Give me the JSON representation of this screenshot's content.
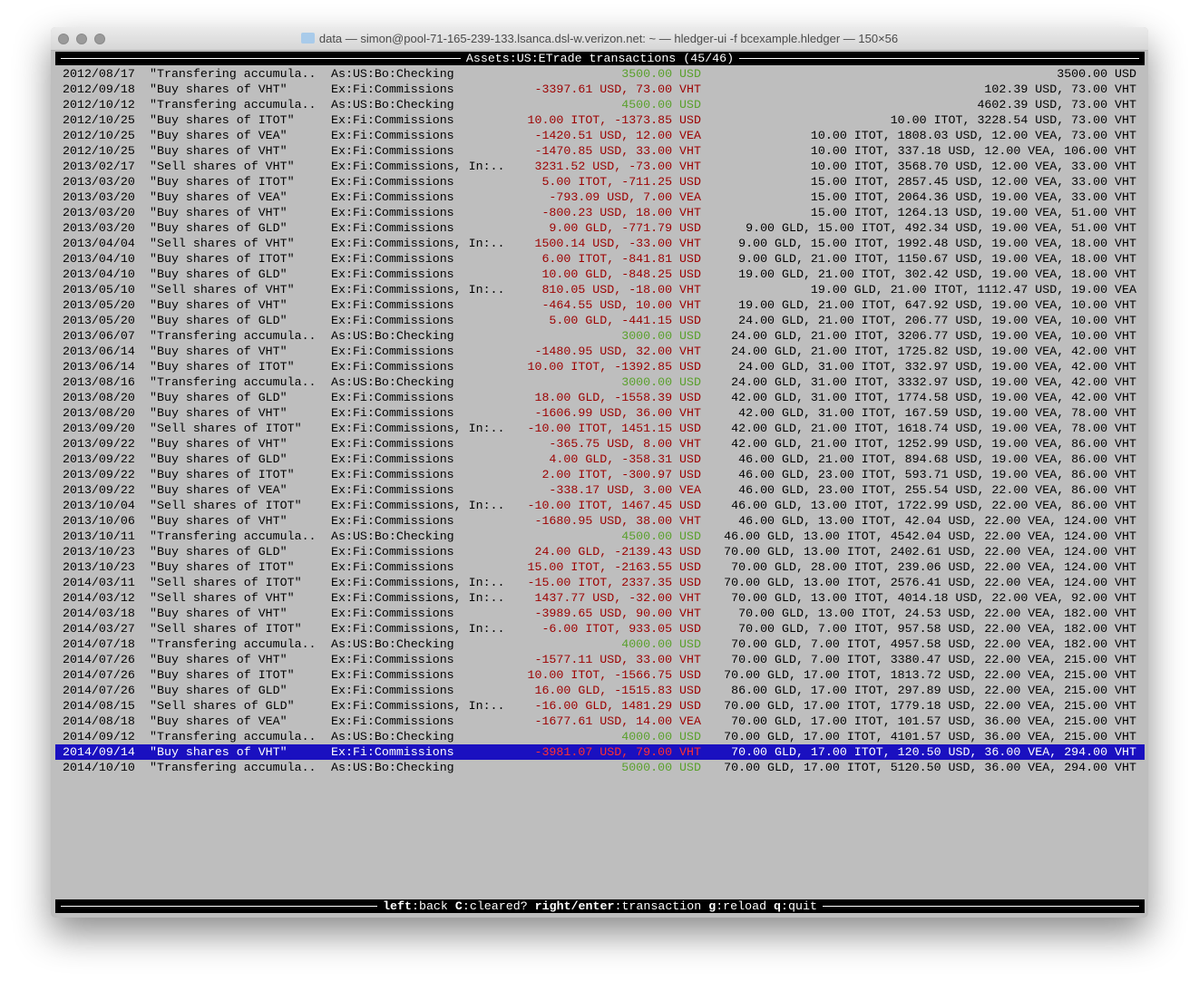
{
  "window": {
    "title": "data — simon@pool-71-165-239-133.lsanca.dsl-w.verizon.net: ~ — hledger-ui -f bcexample.hledger — 150×56"
  },
  "header": {
    "account": "Assets:US:ETrade",
    "suffix": " transactions (45/46)"
  },
  "footer": {
    "keys": [
      {
        "key": "left",
        "action": "back"
      },
      {
        "key": "C",
        "action": "cleared?"
      },
      {
        "key": "right/enter",
        "action": "transaction"
      },
      {
        "key": "g",
        "action": "reload"
      },
      {
        "key": "q",
        "action": "quit"
      }
    ]
  },
  "colors": {
    "g": "#5aa02c",
    "r": "#9c0000",
    "sel_red": "#ff3030",
    "selected_bg": "#1a10c0",
    "terminal_bg": "#bebebe"
  },
  "selected_index": 44,
  "rows": [
    [
      "2012/08/17",
      "\"Transfering accumula..",
      "As:US:Bo:Checking",
      "3500.00 USD",
      "3500.00 USD",
      "g"
    ],
    [
      "2012/09/18",
      "\"Buy shares of VHT\"",
      "Ex:Fi:Commissions",
      "-3397.61 USD, 73.00 VHT",
      "102.39 USD, 73.00 VHT",
      "r"
    ],
    [
      "2012/10/12",
      "\"Transfering accumula..",
      "As:US:Bo:Checking",
      "4500.00 USD",
      "4602.39 USD, 73.00 VHT",
      "g"
    ],
    [
      "2012/10/25",
      "\"Buy shares of ITOT\"",
      "Ex:Fi:Commissions",
      "10.00 ITOT, -1373.85 USD",
      "10.00 ITOT, 3228.54 USD, 73.00 VHT",
      "r"
    ],
    [
      "2012/10/25",
      "\"Buy shares of VEA\"",
      "Ex:Fi:Commissions",
      "-1420.51 USD, 12.00 VEA",
      "10.00 ITOT, 1808.03 USD, 12.00 VEA, 73.00 VHT",
      "r"
    ],
    [
      "2012/10/25",
      "\"Buy shares of VHT\"",
      "Ex:Fi:Commissions",
      "-1470.85 USD, 33.00 VHT",
      "10.00 ITOT, 337.18 USD, 12.00 VEA, 106.00 VHT",
      "r"
    ],
    [
      "2013/02/17",
      "\"Sell shares of VHT\"",
      "Ex:Fi:Commissions, In:..",
      "3231.52 USD, -73.00 VHT",
      "10.00 ITOT, 3568.70 USD, 12.00 VEA, 33.00 VHT",
      "r"
    ],
    [
      "2013/03/20",
      "\"Buy shares of ITOT\"",
      "Ex:Fi:Commissions",
      "5.00 ITOT, -711.25 USD",
      "15.00 ITOT, 2857.45 USD, 12.00 VEA, 33.00 VHT",
      "r"
    ],
    [
      "2013/03/20",
      "\"Buy shares of VEA\"",
      "Ex:Fi:Commissions",
      "-793.09 USD, 7.00 VEA",
      "15.00 ITOT, 2064.36 USD, 19.00 VEA, 33.00 VHT",
      "r"
    ],
    [
      "2013/03/20",
      "\"Buy shares of VHT\"",
      "Ex:Fi:Commissions",
      "-800.23 USD, 18.00 VHT",
      "15.00 ITOT, 1264.13 USD, 19.00 VEA, 51.00 VHT",
      "r"
    ],
    [
      "2013/03/20",
      "\"Buy shares of GLD\"",
      "Ex:Fi:Commissions",
      "9.00 GLD, -771.79 USD",
      "9.00 GLD, 15.00 ITOT, 492.34 USD, 19.00 VEA, 51.00 VHT",
      "r"
    ],
    [
      "2013/04/04",
      "\"Sell shares of VHT\"",
      "Ex:Fi:Commissions, In:..",
      "1500.14 USD, -33.00 VHT",
      "9.00 GLD, 15.00 ITOT, 1992.48 USD, 19.00 VEA, 18.00 VHT",
      "r"
    ],
    [
      "2013/04/10",
      "\"Buy shares of ITOT\"",
      "Ex:Fi:Commissions",
      "6.00 ITOT, -841.81 USD",
      "9.00 GLD, 21.00 ITOT, 1150.67 USD, 19.00 VEA, 18.00 VHT",
      "r"
    ],
    [
      "2013/04/10",
      "\"Buy shares of GLD\"",
      "Ex:Fi:Commissions",
      "10.00 GLD, -848.25 USD",
      "19.00 GLD, 21.00 ITOT, 302.42 USD, 19.00 VEA, 18.00 VHT",
      "r"
    ],
    [
      "2013/05/10",
      "\"Sell shares of VHT\"",
      "Ex:Fi:Commissions, In:..",
      "810.05 USD, -18.00 VHT",
      "19.00 GLD, 21.00 ITOT, 1112.47 USD, 19.00 VEA",
      "r"
    ],
    [
      "2013/05/20",
      "\"Buy shares of VHT\"",
      "Ex:Fi:Commissions",
      "-464.55 USD, 10.00 VHT",
      "19.00 GLD, 21.00 ITOT, 647.92 USD, 19.00 VEA, 10.00 VHT",
      "r"
    ],
    [
      "2013/05/20",
      "\"Buy shares of GLD\"",
      "Ex:Fi:Commissions",
      "5.00 GLD, -441.15 USD",
      "24.00 GLD, 21.00 ITOT, 206.77 USD, 19.00 VEA, 10.00 VHT",
      "r"
    ],
    [
      "2013/06/07",
      "\"Transfering accumula..",
      "As:US:Bo:Checking",
      "3000.00 USD",
      "24.00 GLD, 21.00 ITOT, 3206.77 USD, 19.00 VEA, 10.00 VHT",
      "g"
    ],
    [
      "2013/06/14",
      "\"Buy shares of VHT\"",
      "Ex:Fi:Commissions",
      "-1480.95 USD, 32.00 VHT",
      "24.00 GLD, 21.00 ITOT, 1725.82 USD, 19.00 VEA, 42.00 VHT",
      "r"
    ],
    [
      "2013/06/14",
      "\"Buy shares of ITOT\"",
      "Ex:Fi:Commissions",
      "10.00 ITOT, -1392.85 USD",
      "24.00 GLD, 31.00 ITOT, 332.97 USD, 19.00 VEA, 42.00 VHT",
      "r"
    ],
    [
      "2013/08/16",
      "\"Transfering accumula..",
      "As:US:Bo:Checking",
      "3000.00 USD",
      "24.00 GLD, 31.00 ITOT, 3332.97 USD, 19.00 VEA, 42.00 VHT",
      "g"
    ],
    [
      "2013/08/20",
      "\"Buy shares of GLD\"",
      "Ex:Fi:Commissions",
      "18.00 GLD, -1558.39 USD",
      "42.00 GLD, 31.00 ITOT, 1774.58 USD, 19.00 VEA, 42.00 VHT",
      "r"
    ],
    [
      "2013/08/20",
      "\"Buy shares of VHT\"",
      "Ex:Fi:Commissions",
      "-1606.99 USD, 36.00 VHT",
      "42.00 GLD, 31.00 ITOT, 167.59 USD, 19.00 VEA, 78.00 VHT",
      "r"
    ],
    [
      "2013/09/20",
      "\"Sell shares of ITOT\"",
      "Ex:Fi:Commissions, In:..",
      "-10.00 ITOT, 1451.15 USD",
      "42.00 GLD, 21.00 ITOT, 1618.74 USD, 19.00 VEA, 78.00 VHT",
      "r"
    ],
    [
      "2013/09/22",
      "\"Buy shares of VHT\"",
      "Ex:Fi:Commissions",
      "-365.75 USD, 8.00 VHT",
      "42.00 GLD, 21.00 ITOT, 1252.99 USD, 19.00 VEA, 86.00 VHT",
      "r"
    ],
    [
      "2013/09/22",
      "\"Buy shares of GLD\"",
      "Ex:Fi:Commissions",
      "4.00 GLD, -358.31 USD",
      "46.00 GLD, 21.00 ITOT, 894.68 USD, 19.00 VEA, 86.00 VHT",
      "r"
    ],
    [
      "2013/09/22",
      "\"Buy shares of ITOT\"",
      "Ex:Fi:Commissions",
      "2.00 ITOT, -300.97 USD",
      "46.00 GLD, 23.00 ITOT, 593.71 USD, 19.00 VEA, 86.00 VHT",
      "r"
    ],
    [
      "2013/09/22",
      "\"Buy shares of VEA\"",
      "Ex:Fi:Commissions",
      "-338.17 USD, 3.00 VEA",
      "46.00 GLD, 23.00 ITOT, 255.54 USD, 22.00 VEA, 86.00 VHT",
      "r"
    ],
    [
      "2013/10/04",
      "\"Sell shares of ITOT\"",
      "Ex:Fi:Commissions, In:..",
      "-10.00 ITOT, 1467.45 USD",
      "46.00 GLD, 13.00 ITOT, 1722.99 USD, 22.00 VEA, 86.00 VHT",
      "r"
    ],
    [
      "2013/10/06",
      "\"Buy shares of VHT\"",
      "Ex:Fi:Commissions",
      "-1680.95 USD, 38.00 VHT",
      "46.00 GLD, 13.00 ITOT, 42.04 USD, 22.00 VEA, 124.00 VHT",
      "r"
    ],
    [
      "2013/10/11",
      "\"Transfering accumula..",
      "As:US:Bo:Checking",
      "4500.00 USD",
      "46.00 GLD, 13.00 ITOT, 4542.04 USD, 22.00 VEA, 124.00 VHT",
      "g"
    ],
    [
      "2013/10/23",
      "\"Buy shares of GLD\"",
      "Ex:Fi:Commissions",
      "24.00 GLD, -2139.43 USD",
      "70.00 GLD, 13.00 ITOT, 2402.61 USD, 22.00 VEA, 124.00 VHT",
      "r"
    ],
    [
      "2013/10/23",
      "\"Buy shares of ITOT\"",
      "Ex:Fi:Commissions",
      "15.00 ITOT, -2163.55 USD",
      "70.00 GLD, 28.00 ITOT, 239.06 USD, 22.00 VEA, 124.00 VHT",
      "r"
    ],
    [
      "2014/03/11",
      "\"Sell shares of ITOT\"",
      "Ex:Fi:Commissions, In:..",
      "-15.00 ITOT, 2337.35 USD",
      "70.00 GLD, 13.00 ITOT, 2576.41 USD, 22.00 VEA, 124.00 VHT",
      "r"
    ],
    [
      "2014/03/12",
      "\"Sell shares of VHT\"",
      "Ex:Fi:Commissions, In:..",
      "1437.77 USD, -32.00 VHT",
      "70.00 GLD, 13.00 ITOT, 4014.18 USD, 22.00 VEA, 92.00 VHT",
      "r"
    ],
    [
      "2014/03/18",
      "\"Buy shares of VHT\"",
      "Ex:Fi:Commissions",
      "-3989.65 USD, 90.00 VHT",
      "70.00 GLD, 13.00 ITOT, 24.53 USD, 22.00 VEA, 182.00 VHT",
      "r"
    ],
    [
      "2014/03/27",
      "\"Sell shares of ITOT\"",
      "Ex:Fi:Commissions, In:..",
      "-6.00 ITOT, 933.05 USD",
      "70.00 GLD, 7.00 ITOT, 957.58 USD, 22.00 VEA, 182.00 VHT",
      "r"
    ],
    [
      "2014/07/18",
      "\"Transfering accumula..",
      "As:US:Bo:Checking",
      "4000.00 USD",
      "70.00 GLD, 7.00 ITOT, 4957.58 USD, 22.00 VEA, 182.00 VHT",
      "g"
    ],
    [
      "2014/07/26",
      "\"Buy shares of VHT\"",
      "Ex:Fi:Commissions",
      "-1577.11 USD, 33.00 VHT",
      "70.00 GLD, 7.00 ITOT, 3380.47 USD, 22.00 VEA, 215.00 VHT",
      "r"
    ],
    [
      "2014/07/26",
      "\"Buy shares of ITOT\"",
      "Ex:Fi:Commissions",
      "10.00 ITOT, -1566.75 USD",
      "70.00 GLD, 17.00 ITOT, 1813.72 USD, 22.00 VEA, 215.00 VHT",
      "r"
    ],
    [
      "2014/07/26",
      "\"Buy shares of GLD\"",
      "Ex:Fi:Commissions",
      "16.00 GLD, -1515.83 USD",
      "86.00 GLD, 17.00 ITOT, 297.89 USD, 22.00 VEA, 215.00 VHT",
      "r"
    ],
    [
      "2014/08/15",
      "\"Sell shares of GLD\"",
      "Ex:Fi:Commissions, In:..",
      "-16.00 GLD, 1481.29 USD",
      "70.00 GLD, 17.00 ITOT, 1779.18 USD, 22.00 VEA, 215.00 VHT",
      "r"
    ],
    [
      "2014/08/18",
      "\"Buy shares of VEA\"",
      "Ex:Fi:Commissions",
      "-1677.61 USD, 14.00 VEA",
      "70.00 GLD, 17.00 ITOT, 101.57 USD, 36.00 VEA, 215.00 VHT",
      "r"
    ],
    [
      "2014/09/12",
      "\"Transfering accumula..",
      "As:US:Bo:Checking",
      "4000.00 USD",
      "70.00 GLD, 17.00 ITOT, 4101.57 USD, 36.00 VEA, 215.00 VHT",
      "g"
    ],
    [
      "2014/09/14",
      "\"Buy shares of VHT\"",
      "Ex:Fi:Commissions",
      "-3981.07 USD, 79.00 VHT",
      "70.00 GLD, 17.00 ITOT, 120.50 USD, 36.00 VEA, 294.00 VHT",
      "r"
    ],
    [
      "2014/10/10",
      "\"Transfering accumula..",
      "As:US:Bo:Checking",
      "5000.00 USD",
      "70.00 GLD, 17.00 ITOT, 5120.50 USD, 36.00 VEA, 294.00 VHT",
      "g"
    ]
  ]
}
